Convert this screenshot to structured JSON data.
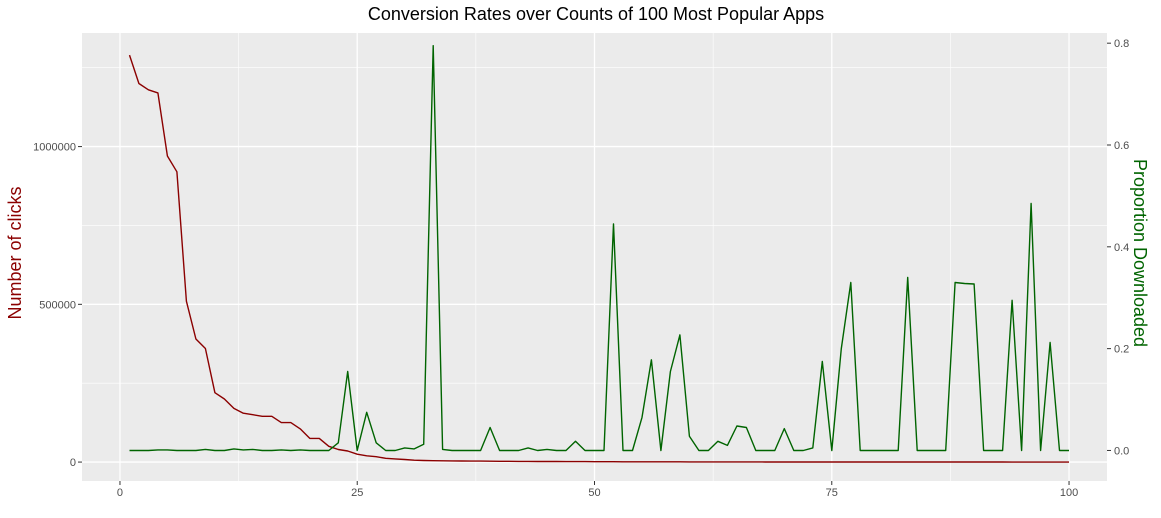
{
  "chart_data": {
    "type": "line",
    "title": "Conversion Rates over Counts of 100 Most Popular Apps",
    "xlabel": "",
    "ylabel": "Number of clicks",
    "ylabel_right": "Proportion Downloaded",
    "xlim": [
      -4,
      104
    ],
    "ylim": [
      -60000,
      1360000
    ],
    "ylim_right": [
      -0.06,
      0.82
    ],
    "x_ticks": [
      "0",
      "25",
      "50",
      "75",
      "100"
    ],
    "y_ticks": [
      "0",
      "500000",
      "1000000"
    ],
    "y_ticks_right": [
      "0.0",
      "0.2",
      "0.4",
      "0.6",
      "0.8"
    ],
    "grid": true,
    "colors": {
      "panel": "#ebebeb",
      "grid": "#ffffff",
      "clicks": "#8b0000",
      "proportion": "#006400"
    },
    "series": [
      {
        "key": "clicks",
        "axis": "left",
        "x": [
          1,
          2,
          3,
          4,
          5,
          6,
          7,
          8,
          9,
          10,
          11,
          12,
          13,
          14,
          15,
          16,
          17,
          18,
          19,
          20,
          21,
          22,
          23,
          24,
          25,
          26,
          27,
          28,
          29,
          30,
          31,
          32,
          33,
          34,
          35,
          36,
          37,
          38,
          39,
          40,
          41,
          42,
          43,
          44,
          45,
          46,
          47,
          48,
          49,
          50,
          51,
          52,
          53,
          54,
          55,
          56,
          57,
          58,
          59,
          60,
          61,
          62,
          63,
          64,
          65,
          66,
          67,
          68,
          69,
          70,
          71,
          72,
          73,
          74,
          75,
          76,
          77,
          78,
          79,
          80,
          81,
          82,
          83,
          84,
          85,
          86,
          87,
          88,
          89,
          90,
          91,
          92,
          93,
          94,
          95,
          96,
          97,
          98,
          99,
          100
        ],
        "values": [
          1290000,
          1200000,
          1180000,
          1170000,
          970000,
          920000,
          510000,
          390000,
          360000,
          220000,
          200000,
          170000,
          155000,
          150000,
          145000,
          145000,
          125000,
          125000,
          105000,
          75000,
          75000,
          50000,
          40000,
          35000,
          25000,
          20000,
          17000,
          12000,
          10000,
          8000,
          6000,
          5000,
          4500,
          4000,
          3800,
          3500,
          3200,
          3000,
          2800,
          2600,
          2400,
          2200,
          2000,
          1900,
          1800,
          1700,
          1600,
          1500,
          1400,
          1300,
          1200,
          1100,
          1000,
          950,
          900,
          850,
          800,
          750,
          700,
          650,
          600,
          560,
          520,
          480,
          450,
          420,
          390,
          360,
          340,
          320,
          300,
          280,
          260,
          240,
          220,
          200,
          190,
          180,
          170,
          160,
          150,
          140,
          130,
          120,
          110,
          100,
          95,
          90,
          85,
          80,
          75,
          70,
          65,
          60,
          55,
          50,
          45,
          40,
          35,
          30
        ]
      },
      {
        "key": "proportion",
        "axis": "right",
        "x": [
          1,
          2,
          3,
          4,
          5,
          6,
          7,
          8,
          9,
          10,
          11,
          12,
          13,
          14,
          15,
          16,
          17,
          18,
          19,
          20,
          21,
          22,
          23,
          24,
          25,
          26,
          27,
          28,
          29,
          30,
          31,
          32,
          33,
          34,
          35,
          36,
          37,
          38,
          39,
          40,
          41,
          42,
          43,
          44,
          45,
          46,
          47,
          48,
          49,
          50,
          51,
          52,
          53,
          54,
          55,
          56,
          57,
          58,
          59,
          60,
          61,
          62,
          63,
          64,
          65,
          66,
          67,
          68,
          69,
          70,
          71,
          72,
          73,
          74,
          75,
          76,
          77,
          78,
          79,
          80,
          81,
          82,
          83,
          84,
          85,
          86,
          87,
          88,
          89,
          90,
          91,
          92,
          93,
          94,
          95,
          96,
          97,
          98,
          99,
          100
        ],
        "values": [
          0,
          0,
          0,
          0.001,
          0.001,
          0,
          0,
          0,
          0.002,
          0,
          0,
          0.003,
          0.001,
          0.002,
          0,
          0,
          0.001,
          0,
          0.001,
          0,
          0,
          0,
          0.015,
          0.155,
          0,
          0.075,
          0.015,
          0,
          0,
          0.005,
          0.003,
          0.012,
          0.795,
          0.002,
          0,
          0,
          0,
          0,
          0.045,
          0,
          0,
          0,
          0.005,
          0,
          0.002,
          0,
          0,
          0.018,
          0,
          0,
          0,
          0.445,
          0,
          0,
          0.065,
          0.178,
          0,
          0.155,
          0.227,
          0.028,
          0,
          0,
          0.018,
          0.01,
          0.048,
          0.045,
          0,
          0,
          0,
          0.043,
          0,
          0,
          0.005,
          0.175,
          0,
          0.2,
          0.33,
          0,
          0,
          0,
          0,
          0,
          0.34,
          0,
          0,
          0,
          0,
          0.33,
          0.328,
          0.327,
          0,
          0,
          0,
          0.295,
          0,
          0.485,
          0,
          0.212,
          0,
          0
        ]
      }
    ]
  }
}
